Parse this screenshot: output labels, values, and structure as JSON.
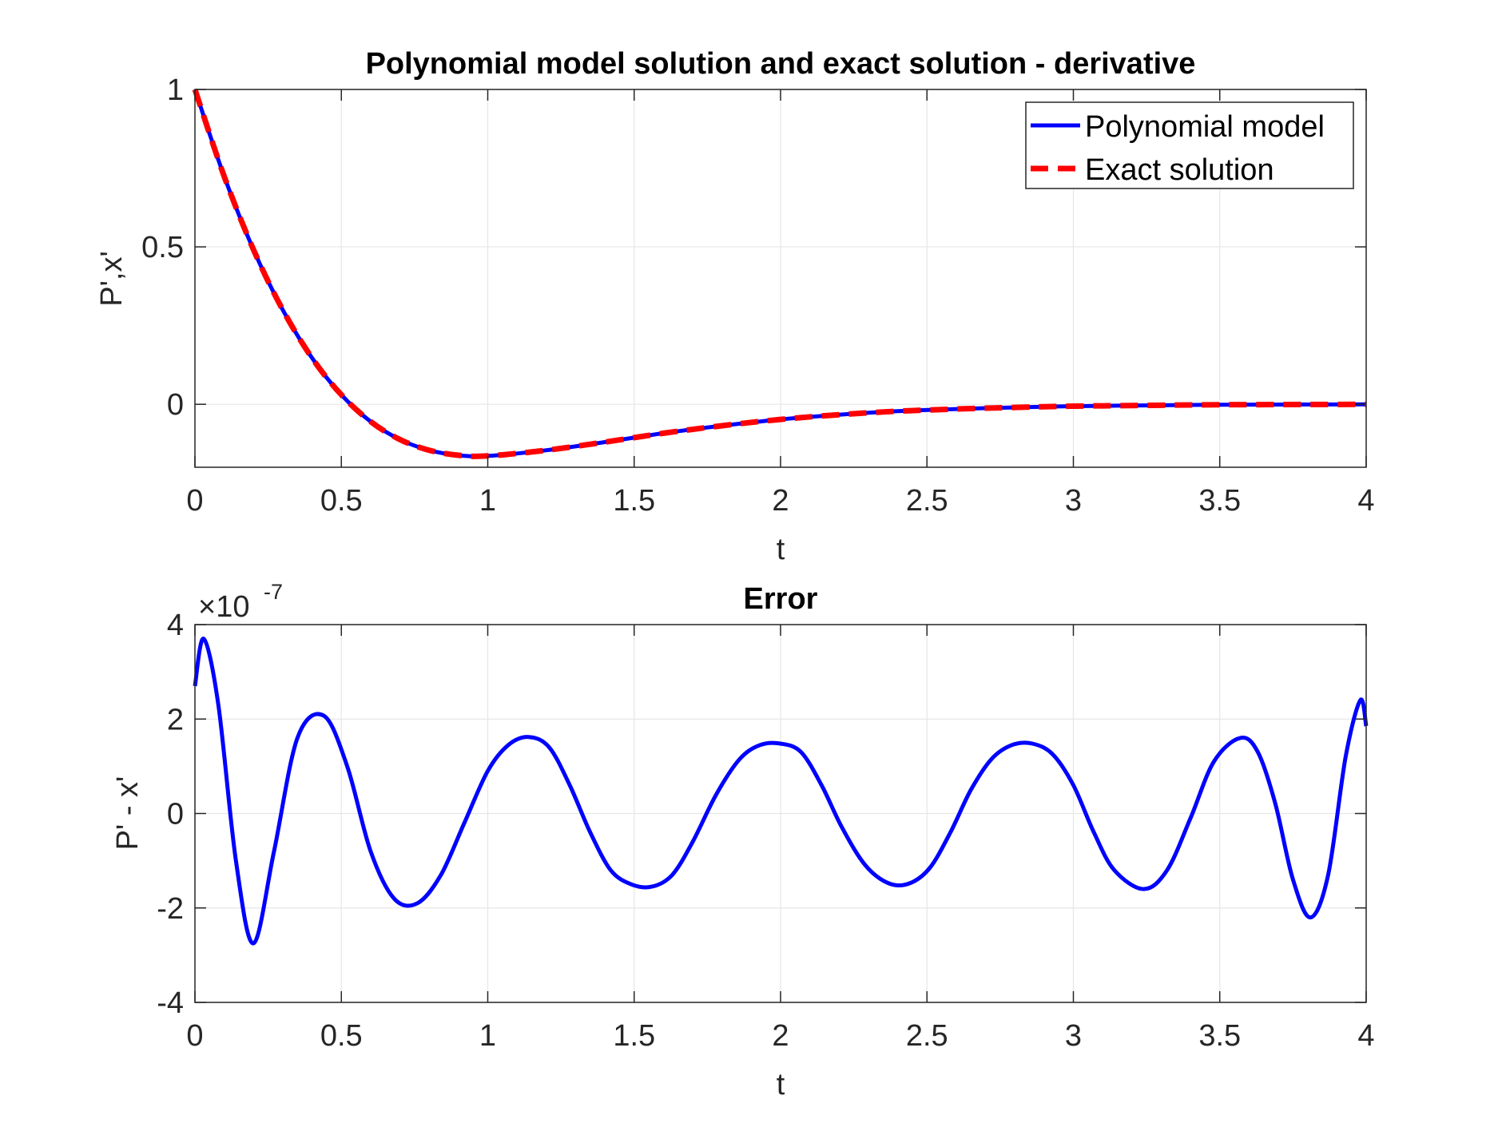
{
  "chart_data": [
    {
      "type": "line",
      "title": "Polynomial model solution and exact solution - derivative",
      "xlabel": "t",
      "ylabel": "P',x'",
      "xlim": [
        0,
        4
      ],
      "ylim": [
        -0.2,
        1
      ],
      "xticks": [
        0,
        0.5,
        1,
        1.5,
        2,
        2.5,
        3,
        3.5,
        4
      ],
      "xtick_labels": [
        "0",
        "0.5",
        "1",
        "1.5",
        "2",
        "2.5",
        "3",
        "3.5",
        "4"
      ],
      "yticks": [
        0,
        0.5,
        1
      ],
      "ytick_labels": [
        "0",
        "0.5",
        "1"
      ],
      "grid": true,
      "legend_position": "top-right",
      "series": [
        {
          "name": "Polynomial model",
          "color": "#0000ff",
          "style": "solid",
          "x": [
            0,
            0.1,
            0.2,
            0.3,
            0.4,
            0.5,
            0.6,
            0.7,
            0.8,
            0.9,
            1.0,
            1.2,
            1.4,
            1.6,
            1.8,
            2.0,
            2.2,
            2.4,
            2.6,
            2.8,
            3.0,
            3.2,
            3.4,
            3.6,
            3.8,
            4.0
          ],
          "y": [
            1.0,
            0.724,
            0.491,
            0.3,
            0.147,
            0.03,
            -0.055,
            -0.112,
            -0.146,
            -0.162,
            -0.164,
            -0.146,
            -0.12,
            -0.092,
            -0.068,
            -0.048,
            -0.033,
            -0.022,
            -0.015,
            -0.01,
            -0.006,
            -0.004,
            -0.002,
            -0.001,
            -0.0007,
            0.0
          ]
        },
        {
          "name": "Exact solution",
          "color": "#ff0000",
          "style": "dashed",
          "x": [
            0,
            0.1,
            0.2,
            0.3,
            0.4,
            0.5,
            0.6,
            0.7,
            0.8,
            0.9,
            1.0,
            1.2,
            1.4,
            1.6,
            1.8,
            2.0,
            2.2,
            2.4,
            2.6,
            2.8,
            3.0,
            3.2,
            3.4,
            3.6,
            3.8,
            4.0
          ],
          "y": [
            1.0,
            0.724,
            0.491,
            0.3,
            0.147,
            0.03,
            -0.055,
            -0.112,
            -0.146,
            -0.162,
            -0.164,
            -0.146,
            -0.12,
            -0.092,
            -0.068,
            -0.048,
            -0.033,
            -0.022,
            -0.015,
            -0.01,
            -0.006,
            -0.004,
            -0.002,
            -0.001,
            -0.0007,
            0.0
          ]
        }
      ]
    },
    {
      "type": "line",
      "title": "Error",
      "xlabel": "t",
      "ylabel": "P' - x'",
      "xlim": [
        0,
        4
      ],
      "ylim": [
        -4e-07,
        4e-07
      ],
      "xticks": [
        0,
        0.5,
        1,
        1.5,
        2,
        2.5,
        3,
        3.5,
        4
      ],
      "xtick_labels": [
        "0",
        "0.5",
        "1",
        "1.5",
        "2",
        "2.5",
        "3",
        "3.5",
        "4"
      ],
      "yticks": [
        -4,
        -2,
        0,
        2,
        4
      ],
      "ytick_labels": [
        "-4",
        "-2",
        "0",
        "2",
        "4"
      ],
      "y_exponent_base": "×10",
      "y_exponent_power": "-7",
      "grid": true,
      "series": [
        {
          "color": "#0000ff",
          "style": "solid",
          "x": [
            0,
            0.03,
            0.08,
            0.14,
            0.2,
            0.27,
            0.35,
            0.44,
            0.52,
            0.6,
            0.68,
            0.76,
            0.84,
            0.92,
            1.0,
            1.07,
            1.14,
            1.21,
            1.28,
            1.35,
            1.42,
            1.49,
            1.56,
            1.63,
            1.7,
            1.78,
            1.86,
            1.93,
            2.0,
            2.07,
            2.14,
            2.21,
            2.29,
            2.37,
            2.44,
            2.51,
            2.58,
            2.65,
            2.72,
            2.79,
            2.86,
            2.93,
            3.0,
            3.07,
            3.14,
            3.24,
            3.32,
            3.4,
            3.48,
            3.57,
            3.63,
            3.69,
            3.75,
            3.81,
            3.87,
            3.93,
            3.98,
            4.0
          ],
          "y": [
            2.7e-07,
            3.7e-07,
            2.3e-07,
            -1e-07,
            -2.75e-07,
            -8e-08,
            1.6e-07,
            2.07e-07,
            1e-07,
            -8e-08,
            -1.8e-07,
            -1.9e-07,
            -1.3e-07,
            -2e-08,
            9e-08,
            1.45e-07,
            1.62e-07,
            1.4e-07,
            6e-08,
            -4e-08,
            -1.2e-07,
            -1.5e-07,
            -1.55e-07,
            -1.3e-07,
            -6e-08,
            4e-08,
            1.15e-07,
            1.45e-07,
            1.48e-07,
            1.3e-07,
            6e-08,
            -3e-08,
            -1.1e-07,
            -1.48e-07,
            -1.48e-07,
            -1.15e-07,
            -4e-08,
            5e-08,
            1.15e-07,
            1.45e-07,
            1.48e-07,
            1.25e-07,
            6e-08,
            -4e-08,
            -1.2e-07,
            -1.6e-07,
            -1.2e-07,
            -1e-08,
            1.1e-07,
            1.6e-07,
            1.3e-07,
            2e-08,
            -1.4e-07,
            -2.2e-07,
            -1.3e-07,
            1.2e-07,
            2.4e-07,
            1.85e-07
          ]
        }
      ]
    }
  ]
}
